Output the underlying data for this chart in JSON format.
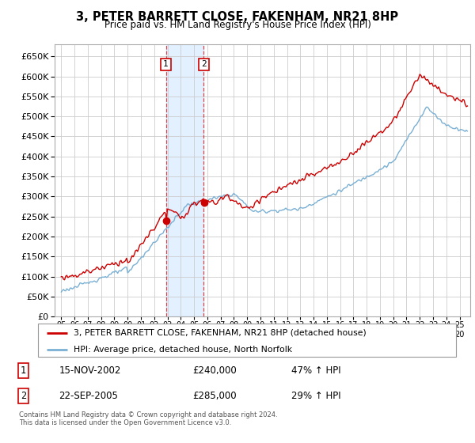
{
  "title": "3, PETER BARRETT CLOSE, FAKENHAM, NR21 8HP",
  "subtitle": "Price paid vs. HM Land Registry's House Price Index (HPI)",
  "legend_line1": "3, PETER BARRETT CLOSE, FAKENHAM, NR21 8HP (detached house)",
  "legend_line2": "HPI: Average price, detached house, North Norfolk",
  "transaction1_date": "15-NOV-2002",
  "transaction1_price": "£240,000",
  "transaction1_hpi": "47% ↑ HPI",
  "transaction2_date": "22-SEP-2005",
  "transaction2_price": "£285,000",
  "transaction2_hpi": "29% ↑ HPI",
  "footer": "Contains HM Land Registry data © Crown copyright and database right 2024.\nThis data is licensed under the Open Government Licence v3.0.",
  "red_color": "#cc0000",
  "blue_color": "#7ab0d4",
  "bg_color": "#ffffff",
  "grid_color": "#cccccc",
  "shade_color": "#ddeeff",
  "transaction1_x": 2002.88,
  "transaction2_x": 2005.73,
  "ylim_min": 0,
  "ylim_max": 680000,
  "xlim_min": 1994.5,
  "xlim_max": 2025.8
}
